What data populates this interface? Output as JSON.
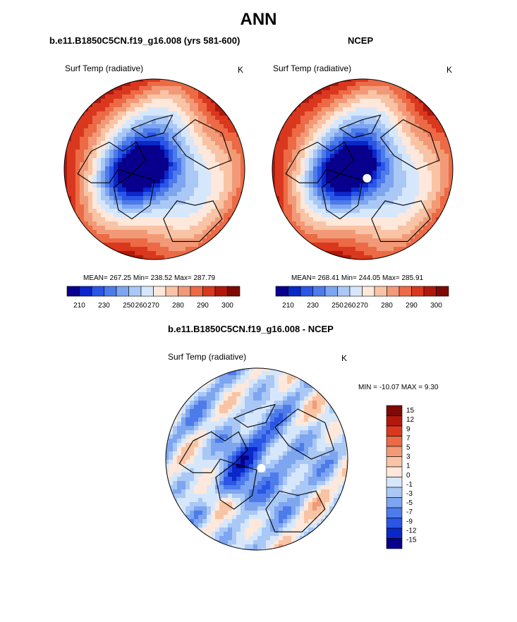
{
  "main_title": "ANN",
  "palette": {
    "abs_colors": [
      "#08008c",
      "#0a27c8",
      "#2a55e6",
      "#4d7be9",
      "#7ea5ef",
      "#aac8f5",
      "#d6e7fb",
      "#fde8db",
      "#f8c4a5",
      "#f29a77",
      "#ec6a45",
      "#d9381e",
      "#b0180c",
      "#7d0a05"
    ],
    "diff_colors": [
      "#08008c",
      "#0a27c8",
      "#2a55e6",
      "#4d7be9",
      "#7ea5ef",
      "#aac8f5",
      "#d6e7fb",
      "#fde8db",
      "#f8c4a5",
      "#f29a77",
      "#ec6a45",
      "#d9381e",
      "#b0180c",
      "#7d0a05"
    ],
    "land_line": "#000000"
  },
  "chart_data": [
    {
      "type": "heatmap",
      "projection": "north-polar-stereographic",
      "title": "b.e11.B1850C5CN.f19_g16.008 (yrs 581-600)",
      "variable": "Surf Temp (radiative)",
      "units": "K",
      "stats": {
        "mean": "267.25",
        "min": "238.52",
        "max": "287.79"
      },
      "stats_text": "MEAN= 267.25   Min= 238.52   Max= 287.79",
      "colorbar_ticks": [
        "210",
        "230",
        "250",
        "260",
        "270",
        "280",
        "290",
        "300"
      ]
    },
    {
      "type": "heatmap",
      "projection": "north-polar-stereographic",
      "title": "NCEP",
      "variable": "Surf Temp (radiative)",
      "units": "K",
      "stats": {
        "mean": "268.41",
        "min": "244.05",
        "max": "285.91"
      },
      "stats_text": "MEAN= 268.41   Min= 244.05   Max= 285.91",
      "colorbar_ticks": [
        "210",
        "230",
        "250",
        "260",
        "270",
        "280",
        "290",
        "300"
      ]
    },
    {
      "type": "heatmap",
      "projection": "north-polar-stereographic",
      "title": "b.e11.B1850C5CN.f19_g16.008 - NCEP",
      "variable": "Surf Temp (radiative)",
      "units": "K",
      "stats": {
        "min": "-10.07",
        "max": "9.30"
      },
      "stats_text": "MIN = -10.07  MAX =    9.30",
      "colorbar_ticks": [
        "15",
        "12",
        "9",
        "7",
        "5",
        "3",
        "1",
        "0",
        "-1",
        "-3",
        "-5",
        "-7",
        "-9",
        "-12",
        "-15"
      ]
    }
  ]
}
